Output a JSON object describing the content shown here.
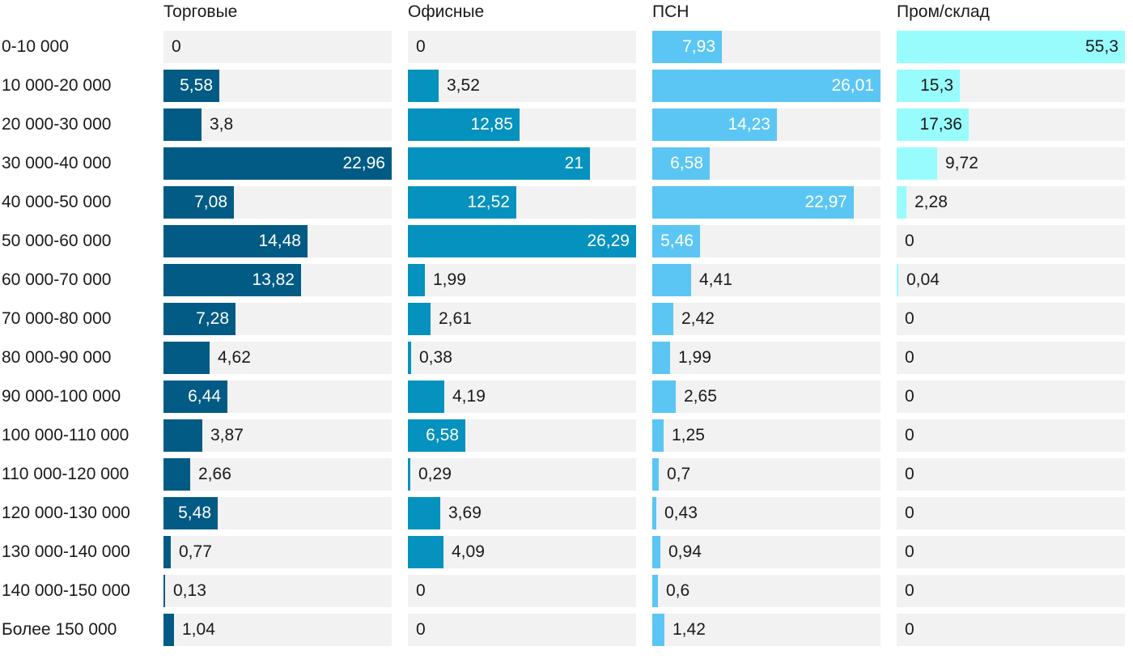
{
  "chart_data": {
    "type": "bar",
    "orientation": "horizontal",
    "layout": "small-multiples",
    "categories": [
      "0-10 000",
      "10 000-20 000",
      "20 000-30 000",
      "30 000-40 000",
      "40 000-50 000",
      "50 000-60 000",
      "60 000-70 000",
      "70 000-80 000",
      "80 000-90 000",
      "90 000-100 000",
      "100 000-110 000",
      "110 000-120 000",
      "120 000-130 000",
      "130 000-140 000",
      "140 000-150 000",
      "Более 150 000"
    ],
    "series": [
      {
        "name": "Торговые",
        "color": "#025b85",
        "max": 22.96,
        "values": [
          0,
          5.58,
          3.8,
          22.96,
          7.08,
          14.48,
          13.82,
          7.28,
          4.62,
          6.44,
          3.87,
          2.66,
          5.48,
          0.77,
          0.13,
          1.04
        ],
        "labels": [
          "0",
          "5,58",
          "3,8",
          "22,96",
          "7,08",
          "14,48",
          "13,82",
          "7,28",
          "4,62",
          "6,44",
          "3,87",
          "2,66",
          "5,48",
          "0,77",
          "0,13",
          "1,04"
        ]
      },
      {
        "name": "Офисные",
        "color": "#0592bf",
        "max": 26.29,
        "values": [
          0,
          3.52,
          12.85,
          21,
          12.52,
          26.29,
          1.99,
          2.61,
          0.38,
          4.19,
          6.58,
          0.29,
          3.69,
          4.09,
          0,
          0
        ],
        "labels": [
          "0",
          "3,52",
          "12,85",
          "21",
          "12,52",
          "26,29",
          "1,99",
          "2,61",
          "0,38",
          "4,19",
          "6,58",
          "0,29",
          "3,69",
          "4,09",
          "0",
          "0"
        ]
      },
      {
        "name": "ПСН",
        "color": "#5bc6f3",
        "max": 26.01,
        "values": [
          7.93,
          26.01,
          14.23,
          6.58,
          22.97,
          5.46,
          4.41,
          2.42,
          1.99,
          2.65,
          1.25,
          0.7,
          0.43,
          0.94,
          0.6,
          1.42
        ],
        "labels": [
          "7,93",
          "26,01",
          "14,23",
          "6,58",
          "22,97",
          "5,46",
          "4,41",
          "2,42",
          "1,99",
          "2,65",
          "1,25",
          "0,7",
          "0,43",
          "0,94",
          "0,6",
          "1,42"
        ]
      },
      {
        "name": "Пром/склад",
        "color": "#98fcfd",
        "max": 55.3,
        "values": [
          55.3,
          15.3,
          17.36,
          9.72,
          2.28,
          0,
          0.04,
          0,
          0,
          0,
          0,
          0,
          0,
          0,
          0,
          0
        ],
        "labels": [
          "55,3",
          "15,3",
          "17,36",
          "9,72",
          "2,28",
          "0",
          "0,04",
          "0",
          "0",
          "0",
          "0",
          "0",
          "0",
          "0",
          "0",
          "0"
        ]
      }
    ],
    "title": "",
    "xlabel": "",
    "ylabel": "",
    "grid": false,
    "legend": "none"
  }
}
